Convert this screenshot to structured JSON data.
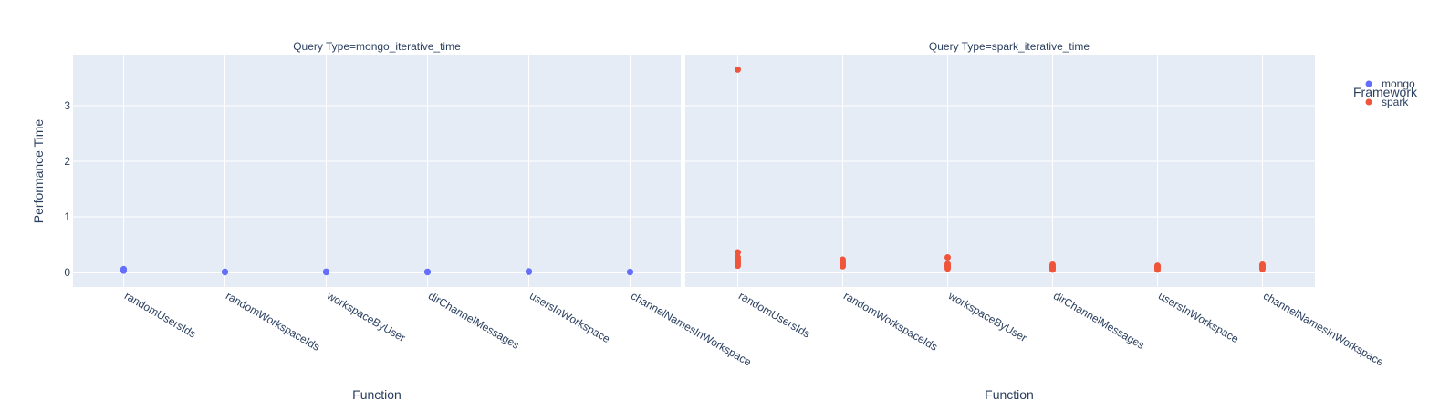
{
  "chart_data": {
    "type": "scatter",
    "categories": [
      "randomUsersIds",
      "randomWorkspaceIds",
      "workspaceByUser",
      "dirChannelMessages",
      "usersInWorkspace",
      "channelNamesInWorkspace"
    ],
    "xlabel": "Function",
    "ylabel": "Performance Time",
    "ylim": [
      -0.27,
      3.9
    ],
    "yticks": [
      0,
      1,
      2,
      3
    ],
    "grid": true,
    "legend": {
      "title": "Framework",
      "placement": "right",
      "entries": [
        {
          "name": "mongo",
          "color": "#636EFA"
        },
        {
          "name": "spark",
          "color": "#EF553B"
        }
      ]
    },
    "facets": [
      {
        "title": "Query Type=mongo_iterative_time",
        "series": [
          {
            "name": "mongo",
            "color": "#636EFA",
            "points": [
              {
                "x": "randomUsersIds",
                "y": [
                  0.03,
                  0.045,
                  0.055,
                  0.06
                ]
              },
              {
                "x": "randomWorkspaceIds",
                "y": [
                  0.005,
                  0.01,
                  0.012
                ]
              },
              {
                "x": "workspaceByUser",
                "y": [
                  0.005,
                  0.01,
                  0.015
                ]
              },
              {
                "x": "dirChannelMessages",
                "y": [
                  0.005,
                  0.01,
                  0.012
                ]
              },
              {
                "x": "usersInWorkspace",
                "y": [
                  0.01,
                  0.015,
                  0.02
                ]
              },
              {
                "x": "channelNamesInWorkspace",
                "y": [
                  0.005,
                  0.01
                ]
              }
            ]
          }
        ]
      },
      {
        "title": "Query Type=spark_iterative_time",
        "series": [
          {
            "name": "spark",
            "color": "#EF553B",
            "points": [
              {
                "x": "randomUsersIds",
                "y": [
                  3.65,
                  0.36,
                  0.27,
                  0.23,
                  0.19,
                  0.16,
                  0.12
                ]
              },
              {
                "x": "randomWorkspaceIds",
                "y": [
                  0.23,
                  0.2,
                  0.16,
                  0.13,
                  0.11
                ]
              },
              {
                "x": "workspaceByUser",
                "y": [
                  0.27,
                  0.15,
                  0.12,
                  0.1,
                  0.07
                ]
              },
              {
                "x": "dirChannelMessages",
                "y": [
                  0.14,
                  0.11,
                  0.09,
                  0.07,
                  0.05
                ]
              },
              {
                "x": "usersInWorkspace",
                "y": [
                  0.12,
                  0.1,
                  0.08,
                  0.06,
                  0.05
                ]
              },
              {
                "x": "channelNamesInWorkspace",
                "y": [
                  0.14,
                  0.12,
                  0.1,
                  0.08,
                  0.06
                ]
              }
            ]
          }
        ]
      }
    ]
  }
}
